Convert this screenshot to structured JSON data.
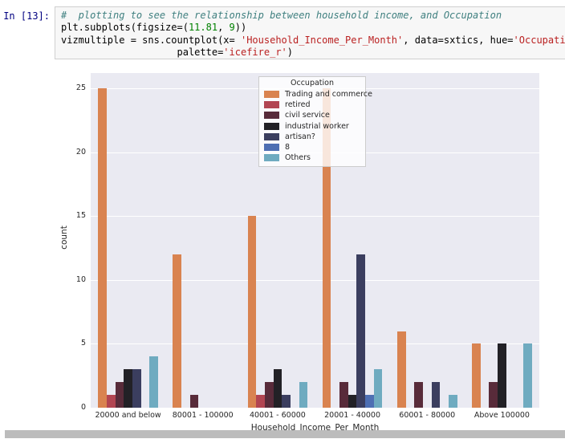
{
  "cell": {
    "prompt": "In [13]:",
    "code_lines": [
      [
        {
          "text": "#  plotting to see the relationship between household income, and Occupation",
          "type": "comment"
        }
      ],
      [
        {
          "text": "plt.subplots(figsize=(",
          "type": "plain"
        },
        {
          "text": "11.81",
          "type": "number"
        },
        {
          "text": ", ",
          "type": "plain"
        },
        {
          "text": "9",
          "type": "number"
        },
        {
          "text": "))",
          "type": "plain"
        }
      ],
      [
        {
          "text": "vizmultiple = sns.countplot(x= ",
          "type": "plain"
        },
        {
          "text": "'Household_Income_Per_Month'",
          "type": "string"
        },
        {
          "text": ", data=sxtics, hue=",
          "type": "plain"
        },
        {
          "text": "'Occupatio",
          "type": "string"
        }
      ],
      [
        {
          "text": "                    palette=",
          "type": "plain"
        },
        {
          "text": "'icefire_r'",
          "type": "string"
        },
        {
          "text": ")",
          "type": "plain"
        }
      ]
    ]
  },
  "chart_data": {
    "type": "bar",
    "title": "",
    "xlabel": "Household_Income_Per_Month",
    "ylabel": "count",
    "ylim": [
      0,
      26.2
    ],
    "yticks": [
      0,
      5,
      10,
      15,
      20,
      25
    ],
    "grid": true,
    "legend_title": "Occupation",
    "legend_position": "upper center",
    "categories": [
      "20000 and below",
      "80001 - 100000",
      "40001 - 60000",
      "20001 - 40000",
      "60001 - 80000",
      "Above 100000"
    ],
    "series": [
      {
        "name": "Trading and commerce",
        "color": "#d98350",
        "values": [
          25,
          12,
          15,
          25,
          6,
          5
        ]
      },
      {
        "name": "retired",
        "color": "#b24552",
        "values": [
          1,
          0,
          1,
          0,
          0,
          0
        ]
      },
      {
        "name": "civil service",
        "color": "#582b3a",
        "values": [
          2,
          1,
          2,
          2,
          2,
          2
        ]
      },
      {
        "name": "industrial worker",
        "color": "#222126",
        "values": [
          3,
          0,
          3,
          1,
          0,
          5
        ]
      },
      {
        "name": "artisan?",
        "color": "#3b3e5f",
        "values": [
          3,
          0,
          1,
          12,
          2,
          0
        ]
      },
      {
        "name": "8",
        "color": "#4e6fb3",
        "values": [
          0,
          0,
          0,
          1,
          0,
          0
        ]
      },
      {
        "name": "Others",
        "color": "#6fabc0",
        "values": [
          4,
          0,
          2,
          3,
          1,
          5
        ]
      }
    ],
    "colors": {
      "axes_background": "#eaeaf2",
      "gridline": "#ffffff",
      "tick_text": "#262626"
    }
  }
}
